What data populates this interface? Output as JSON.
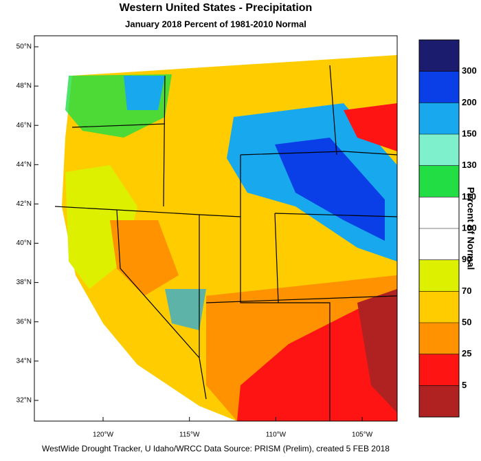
{
  "header": {
    "title": "Western United States - Precipitation",
    "subtitle": "January 2018  Percent of 1981-2010 Normal"
  },
  "map": {
    "lat_labels": [
      "50°N",
      "48°N",
      "46°N",
      "44°N",
      "42°N",
      "40°N",
      "38°N",
      "36°N",
      "34°N",
      "32°N"
    ],
    "lon_labels": [
      "120°W",
      "115°W",
      "110°W",
      "105°W"
    ]
  },
  "legend": {
    "title": "Percent of Normal",
    "labels": [
      300,
      200,
      150,
      130,
      110,
      100,
      90,
      70,
      50,
      25,
      5
    ],
    "colors": [
      "#1c1c6e",
      "#0a3ee6",
      "#18a8ee",
      "#7ef0cc",
      "#22dd44",
      "#ffffff",
      "#ffffff",
      "#dcf000",
      "#ffcc00",
      "#ff9200",
      "#ff1414",
      "#b02222"
    ]
  },
  "footer": "WestWide Drought Tracker, U Idaho/WRCC Data Source: PRISM (Prelim), created  5 FEB 2018"
}
